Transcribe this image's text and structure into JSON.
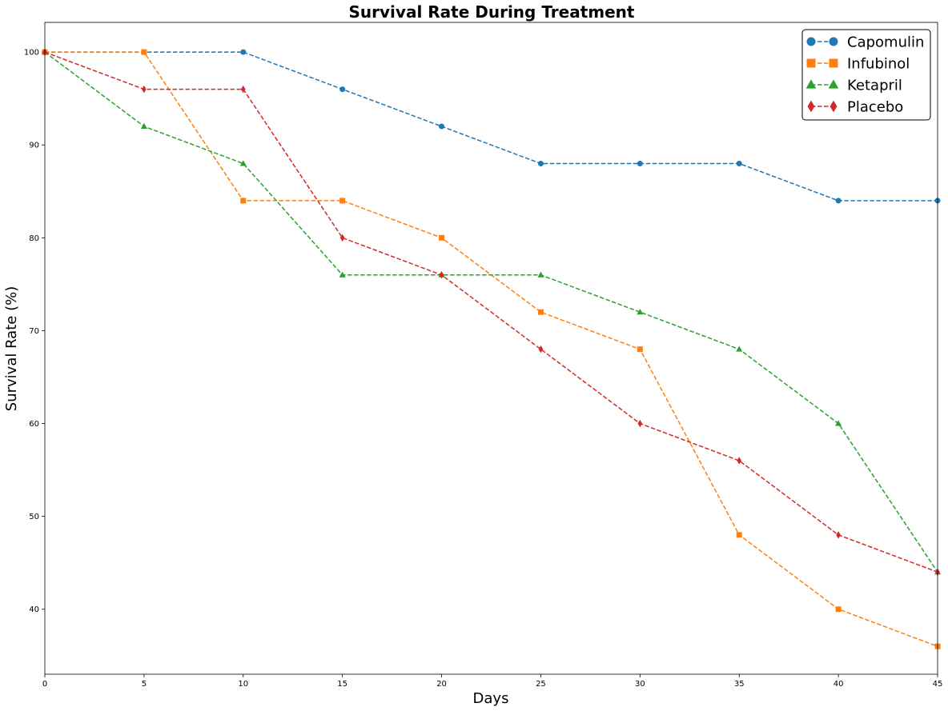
{
  "chart_data": {
    "type": "line",
    "title": "Survival Rate During Treatment",
    "xlabel": "Days",
    "ylabel": "Survival Rate (%)",
    "x": [
      0,
      5,
      10,
      15,
      20,
      25,
      30,
      35,
      40,
      45
    ],
    "xlim": [
      0,
      45
    ],
    "ylim": [
      33,
      103.2
    ],
    "xticks": [
      0,
      5,
      10,
      15,
      20,
      25,
      30,
      35,
      40,
      45
    ],
    "yticks": [
      40,
      50,
      60,
      70,
      80,
      90,
      100
    ],
    "grid": false,
    "legend_position": "top-right",
    "series": [
      {
        "name": "Capomulin",
        "color": "#1f77b4",
        "marker": "circle",
        "values": [
          100,
          100,
          100,
          96,
          92,
          88,
          88,
          88,
          84,
          84
        ]
      },
      {
        "name": "Infubinol",
        "color": "#ff7f0e",
        "marker": "square",
        "values": [
          100,
          100,
          84,
          84,
          80,
          72,
          68,
          48,
          40,
          36
        ]
      },
      {
        "name": "Ketapril",
        "color": "#2ca02c",
        "marker": "triangle",
        "values": [
          100,
          92,
          88,
          76,
          76,
          76,
          72,
          68,
          60,
          44
        ]
      },
      {
        "name": "Placebo",
        "color": "#d62728",
        "marker": "diamond",
        "values": [
          100,
          96,
          96,
          80,
          76,
          68,
          60,
          56,
          48,
          44
        ]
      }
    ]
  }
}
